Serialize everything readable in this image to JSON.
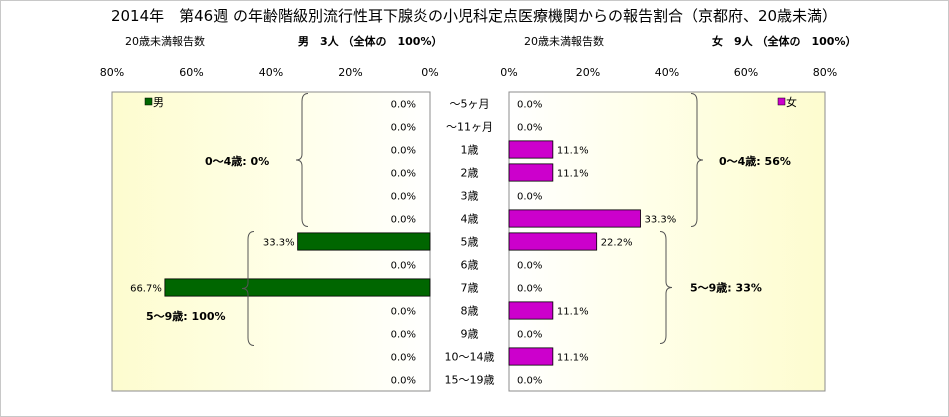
{
  "chart_data": {
    "type": "bar",
    "title": "2014年　第46週 の年齢階級別流行性耳下腺炎の小児科定点医療機関からの報告割合（京都府、20歳未満）",
    "categories": [
      "～5ヶ月",
      "～11ヶ月",
      "1歳",
      "2歳",
      "3歳",
      "4歳",
      "5歳",
      "6歳",
      "7歳",
      "8歳",
      "9歳",
      "10～14歳",
      "15～19歳"
    ],
    "xlim": [
      0,
      80
    ],
    "ticks": [
      0,
      20,
      40,
      60,
      80
    ],
    "tick_labels": [
      "0%",
      "20%",
      "40%",
      "60%",
      "80%"
    ],
    "grid": false,
    "series": [
      {
        "name": "男",
        "side": "left",
        "color": "#006600",
        "header_label": "20歳未満報告数",
        "header_count": "男　3人 （全体の　100%）",
        "values": [
          0,
          0,
          0,
          0,
          0,
          0,
          33.3,
          0,
          66.7,
          0,
          0,
          0,
          0
        ],
        "value_labels": [
          "0.0%",
          "0.0%",
          "0.0%",
          "0.0%",
          "0.0%",
          "0.0%",
          "33.3%",
          "0.0%",
          "66.7%",
          "0.0%",
          "0.0%",
          "0.0%",
          "0.0%"
        ],
        "groups": [
          {
            "label": "0～4歳: 0%",
            "start": 0,
            "end": 5
          },
          {
            "label": "5～9歳: 100%",
            "start": 6,
            "end": 10
          }
        ]
      },
      {
        "name": "女",
        "side": "right",
        "color": "#cc00cc",
        "header_label": "20歳未満報告数",
        "header_count": "女　9人 （全体の　100%）",
        "values": [
          0,
          0,
          11.1,
          11.1,
          0,
          33.3,
          22.2,
          0,
          0,
          11.1,
          0,
          11.1,
          0
        ],
        "value_labels": [
          "0.0%",
          "0.0%",
          "11.1%",
          "11.1%",
          "0.0%",
          "33.3%",
          "22.2%",
          "0.0%",
          "0.0%",
          "11.1%",
          "0.0%",
          "11.1%",
          "0.0%"
        ],
        "groups": [
          {
            "label": "0～4歳: 56%",
            "start": 0,
            "end": 5
          },
          {
            "label": "5～9歳: 33%",
            "start": 6,
            "end": 10
          }
        ]
      }
    ]
  }
}
